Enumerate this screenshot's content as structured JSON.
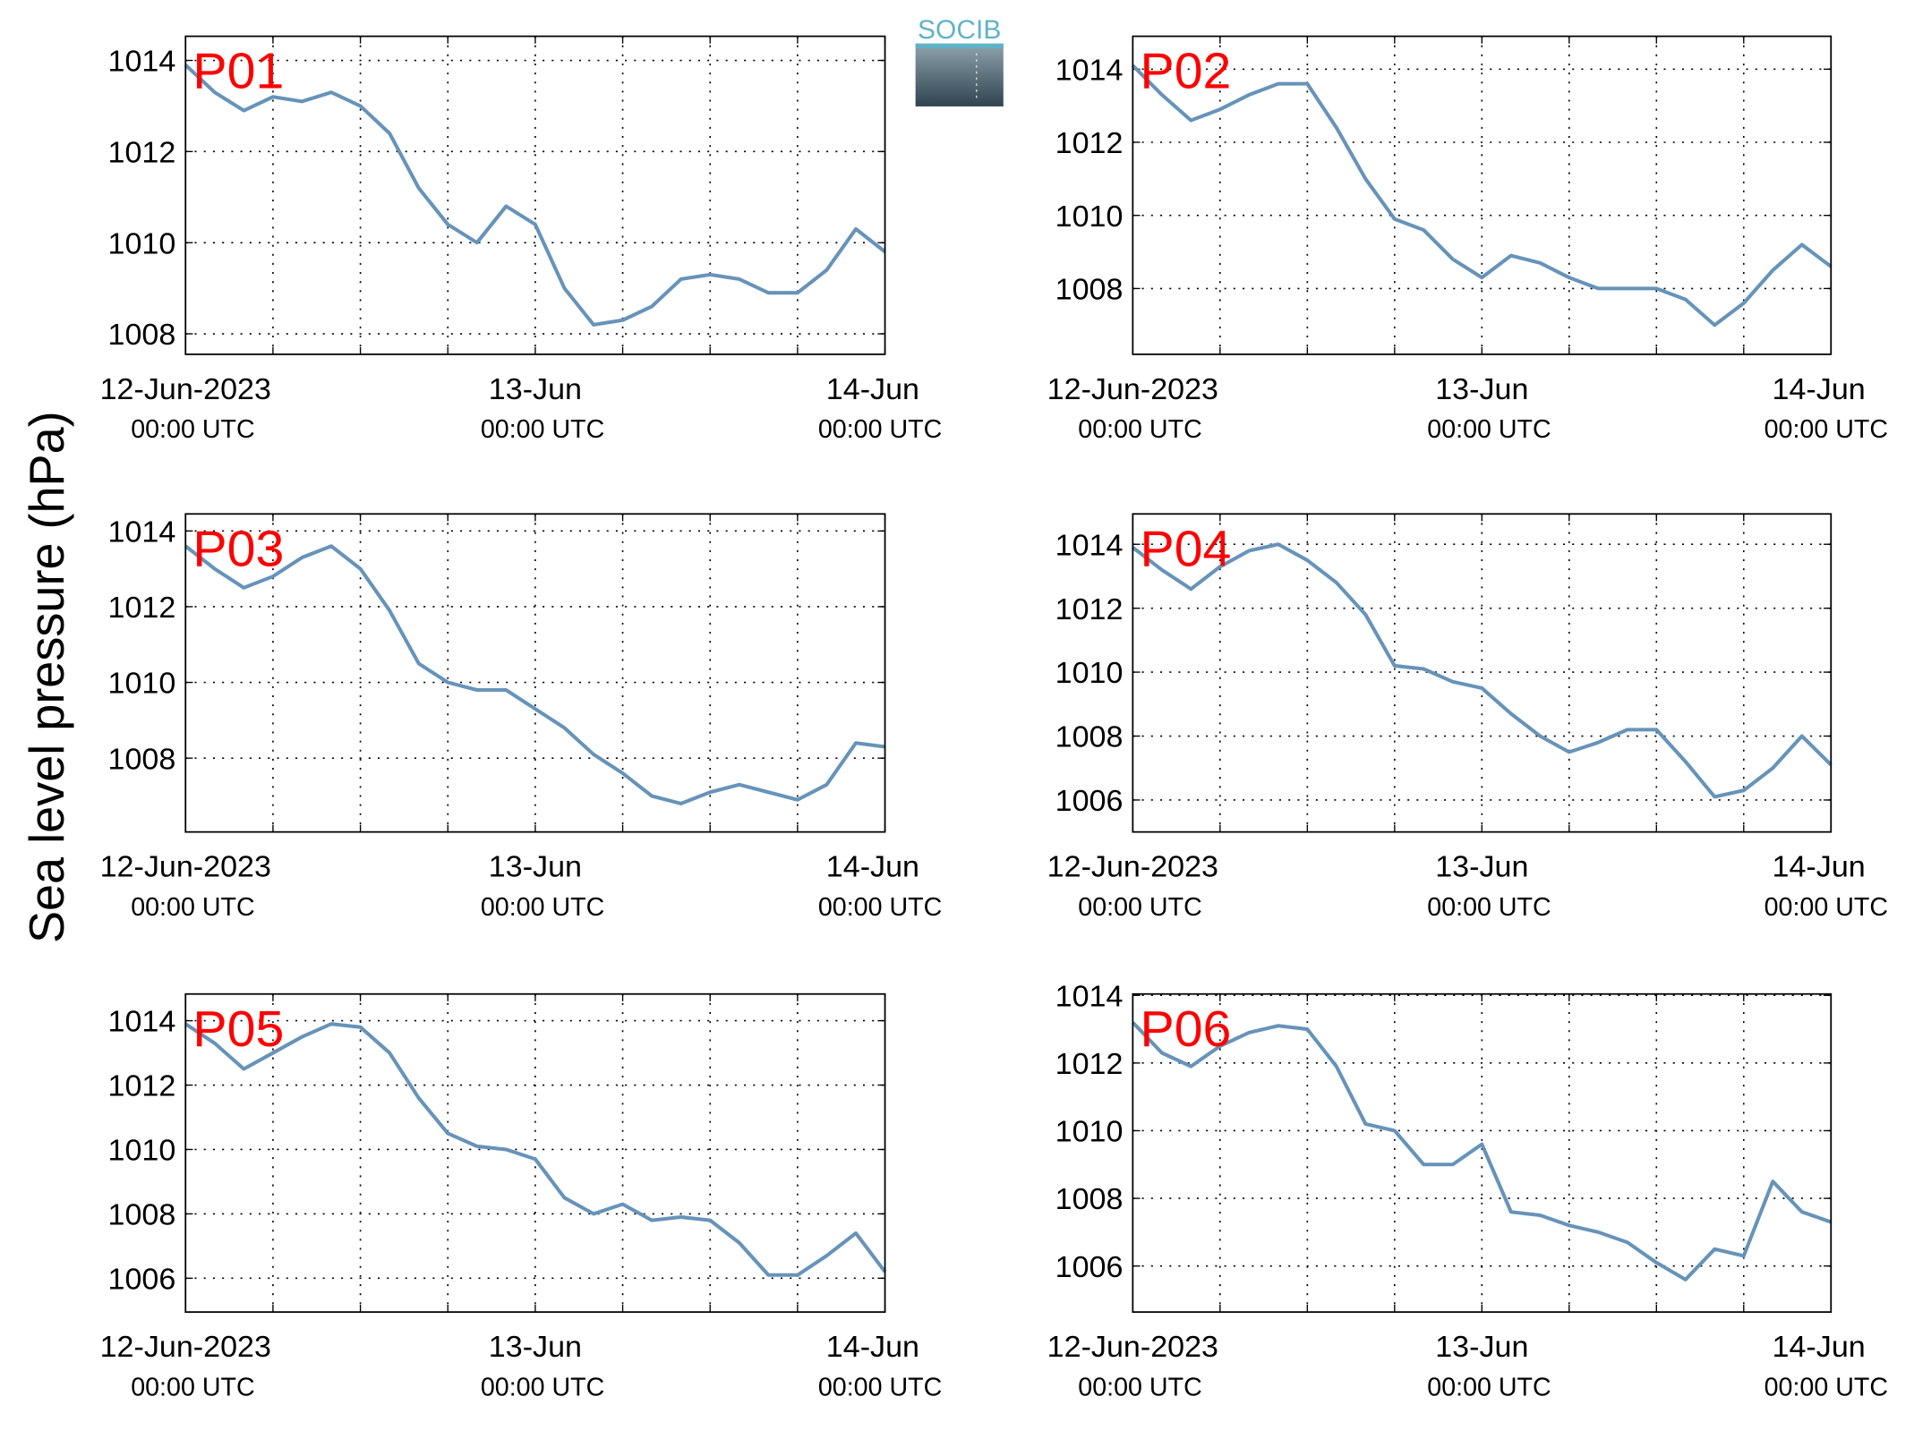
{
  "ylabel": "Sea level pressure (hPa)",
  "logo": "SOCIB",
  "chart_data": [
    {
      "type": "line",
      "title": "P01",
      "x": [
        "2023-06-12T00:00",
        "2023-06-12T02:00",
        "2023-06-12T04:00",
        "2023-06-12T06:00",
        "2023-06-12T08:00",
        "2023-06-12T10:00",
        "2023-06-12T12:00",
        "2023-06-12T14:00",
        "2023-06-12T16:00",
        "2023-06-12T18:00",
        "2023-06-12T20:00",
        "2023-06-12T22:00",
        "2023-06-13T00:00",
        "2023-06-13T02:00",
        "2023-06-13T04:00",
        "2023-06-13T06:00",
        "2023-06-13T08:00",
        "2023-06-13T10:00",
        "2023-06-13T12:00",
        "2023-06-13T14:00",
        "2023-06-13T16:00",
        "2023-06-13T18:00",
        "2023-06-13T20:00",
        "2023-06-13T22:00",
        "2023-06-14T00:00"
      ],
      "series": [
        {
          "color": "#6793b9",
          "values": [
            1013.9,
            1013.3,
            1012.9,
            1013.2,
            1013.1,
            1013.3,
            1013.0,
            1012.4,
            1011.2,
            1010.4,
            1010.0,
            1010.8,
            1010.4,
            1009.0,
            1008.2,
            1008.3,
            1008.6,
            1009.2,
            1009.3,
            1009.2,
            1008.9,
            1008.9,
            1009.4,
            1010.3,
            1009.8
          ]
        }
      ],
      "xlim": [
        "2023-06-12T00:00",
        "2023-06-14T00:00"
      ],
      "xticks": [
        {
          "value": "2023-06-12T00:00",
          "label": "12-Jun-2023",
          "sublabel": "00:00 UTC"
        },
        {
          "value": "2023-06-12T06:00",
          "label": null
        },
        {
          "value": "2023-06-12T12:00",
          "label": null
        },
        {
          "value": "2023-06-12T18:00",
          "label": null
        },
        {
          "value": "2023-06-13T00:00",
          "label": "13-Jun",
          "sublabel": "00:00 UTC"
        },
        {
          "value": "2023-06-13T06:00",
          "label": null
        },
        {
          "value": "2023-06-13T12:00",
          "label": null
        },
        {
          "value": "2023-06-13T18:00",
          "label": null
        },
        {
          "value": "2023-06-14T00:00",
          "label": "14-Jun",
          "sublabel": "00:00 UTC"
        }
      ],
      "ylim": [
        1007.55,
        1014.53
      ],
      "yticks": [
        1008,
        1010,
        1012,
        1014
      ],
      "grid": true
    },
    {
      "type": "line",
      "title": "P02",
      "x": [
        "2023-06-12T00:00",
        "2023-06-12T02:00",
        "2023-06-12T04:00",
        "2023-06-12T06:00",
        "2023-06-12T08:00",
        "2023-06-12T10:00",
        "2023-06-12T12:00",
        "2023-06-12T14:00",
        "2023-06-12T16:00",
        "2023-06-12T18:00",
        "2023-06-12T20:00",
        "2023-06-12T22:00",
        "2023-06-13T00:00",
        "2023-06-13T02:00",
        "2023-06-13T04:00",
        "2023-06-13T06:00",
        "2023-06-13T08:00",
        "2023-06-13T10:00",
        "2023-06-13T12:00",
        "2023-06-13T14:00",
        "2023-06-13T16:00",
        "2023-06-13T18:00",
        "2023-06-13T20:00",
        "2023-06-13T22:00",
        "2023-06-14T00:00"
      ],
      "series": [
        {
          "color": "#6793b9",
          "values": [
            1014.1,
            1013.3,
            1012.6,
            1012.9,
            1013.3,
            1013.6,
            1013.6,
            1012.4,
            1011.0,
            1009.9,
            1009.6,
            1008.8,
            1008.3,
            1008.9,
            1008.7,
            1008.3,
            1008.0,
            1008.0,
            1008.0,
            1007.7,
            1007.0,
            1007.6,
            1008.5,
            1009.2,
            1008.6
          ]
        }
      ],
      "xlim": [
        "2023-06-12T00:00",
        "2023-06-14T00:00"
      ],
      "xticks": [
        {
          "value": "2023-06-12T00:00",
          "label": "12-Jun-2023",
          "sublabel": "00:00 UTC"
        },
        {
          "value": "2023-06-12T06:00",
          "label": null
        },
        {
          "value": "2023-06-12T12:00",
          "label": null
        },
        {
          "value": "2023-06-12T18:00",
          "label": null
        },
        {
          "value": "2023-06-13T00:00",
          "label": "13-Jun",
          "sublabel": "00:00 UTC"
        },
        {
          "value": "2023-06-13T06:00",
          "label": null
        },
        {
          "value": "2023-06-13T12:00",
          "label": null
        },
        {
          "value": "2023-06-13T18:00",
          "label": null
        },
        {
          "value": "2023-06-14T00:00",
          "label": "14-Jun",
          "sublabel": "00:00 UTC"
        }
      ],
      "ylim": [
        1006.2,
        1014.9
      ],
      "yticks": [
        1008,
        1010,
        1012,
        1014
      ],
      "grid": true
    },
    {
      "type": "line",
      "title": "P03",
      "x": [
        "2023-06-12T00:00",
        "2023-06-12T02:00",
        "2023-06-12T04:00",
        "2023-06-12T06:00",
        "2023-06-12T08:00",
        "2023-06-12T10:00",
        "2023-06-12T12:00",
        "2023-06-12T14:00",
        "2023-06-12T16:00",
        "2023-06-12T18:00",
        "2023-06-12T20:00",
        "2023-06-12T22:00",
        "2023-06-13T00:00",
        "2023-06-13T02:00",
        "2023-06-13T04:00",
        "2023-06-13T06:00",
        "2023-06-13T08:00",
        "2023-06-13T10:00",
        "2023-06-13T12:00",
        "2023-06-13T14:00",
        "2023-06-13T16:00",
        "2023-06-13T18:00",
        "2023-06-13T20:00",
        "2023-06-13T22:00",
        "2023-06-14T00:00"
      ],
      "series": [
        {
          "color": "#6793b9",
          "values": [
            1013.6,
            1013.0,
            1012.5,
            1012.8,
            1013.3,
            1013.6,
            1013.0,
            1011.9,
            1010.5,
            1010.0,
            1009.8,
            1009.8,
            1009.3,
            1008.8,
            1008.1,
            1007.6,
            1007.0,
            1006.8,
            1007.1,
            1007.3,
            1007.1,
            1006.9,
            1007.3,
            1008.4,
            1008.3
          ]
        }
      ],
      "xlim": [
        "2023-06-12T00:00",
        "2023-06-14T00:00"
      ],
      "xticks": [
        {
          "value": "2023-06-12T00:00",
          "label": "12-Jun-2023",
          "sublabel": "00:00 UTC"
        },
        {
          "value": "2023-06-12T06:00",
          "label": null
        },
        {
          "value": "2023-06-12T12:00",
          "label": null
        },
        {
          "value": "2023-06-12T18:00",
          "label": null
        },
        {
          "value": "2023-06-13T00:00",
          "label": "13-Jun",
          "sublabel": "00:00 UTC"
        },
        {
          "value": "2023-06-13T06:00",
          "label": null
        },
        {
          "value": "2023-06-13T12:00",
          "label": null
        },
        {
          "value": "2023-06-13T18:00",
          "label": null
        },
        {
          "value": "2023-06-14T00:00",
          "label": "14-Jun",
          "sublabel": "00:00 UTC"
        }
      ],
      "ylim": [
        1006.05,
        1014.45
      ],
      "yticks": [
        1008,
        1010,
        1012,
        1014
      ],
      "grid": true
    },
    {
      "type": "line",
      "title": "P04",
      "x": [
        "2023-06-12T00:00",
        "2023-06-12T02:00",
        "2023-06-12T04:00",
        "2023-06-12T06:00",
        "2023-06-12T08:00",
        "2023-06-12T10:00",
        "2023-06-12T12:00",
        "2023-06-12T14:00",
        "2023-06-12T16:00",
        "2023-06-12T18:00",
        "2023-06-12T20:00",
        "2023-06-12T22:00",
        "2023-06-13T00:00",
        "2023-06-13T02:00",
        "2023-06-13T04:00",
        "2023-06-13T06:00",
        "2023-06-13T08:00",
        "2023-06-13T10:00",
        "2023-06-13T12:00",
        "2023-06-13T14:00",
        "2023-06-13T16:00",
        "2023-06-13T18:00",
        "2023-06-13T20:00",
        "2023-06-13T22:00",
        "2023-06-14T00:00"
      ],
      "series": [
        {
          "color": "#6793b9",
          "values": [
            1013.9,
            1013.2,
            1012.6,
            1013.3,
            1013.8,
            1014.0,
            1013.5,
            1012.8,
            1011.8,
            1010.2,
            1010.1,
            1009.7,
            1009.5,
            1008.7,
            1008.0,
            1007.5,
            1007.8,
            1008.2,
            1008.2,
            1007.2,
            1006.1,
            1006.3,
            1007.0,
            1008.0,
            1007.1
          ]
        }
      ],
      "xlim": [
        "2023-06-12T00:00",
        "2023-06-14T00:00"
      ],
      "xticks": [
        {
          "value": "2023-06-12T00:00",
          "label": "12-Jun-2023",
          "sublabel": "00:00 UTC"
        },
        {
          "value": "2023-06-12T06:00",
          "label": null
        },
        {
          "value": "2023-06-12T12:00",
          "label": null
        },
        {
          "value": "2023-06-12T18:00",
          "label": null
        },
        {
          "value": "2023-06-13T00:00",
          "label": "13-Jun",
          "sublabel": "00:00 UTC"
        },
        {
          "value": "2023-06-13T06:00",
          "label": null
        },
        {
          "value": "2023-06-13T12:00",
          "label": null
        },
        {
          "value": "2023-06-13T18:00",
          "label": null
        },
        {
          "value": "2023-06-14T00:00",
          "label": "14-Jun",
          "sublabel": "00:00 UTC"
        }
      ],
      "ylim": [
        1005.0,
        1014.95
      ],
      "yticks": [
        1006,
        1008,
        1010,
        1012,
        1014
      ],
      "grid": true
    },
    {
      "type": "line",
      "title": "P05",
      "x": [
        "2023-06-12T00:00",
        "2023-06-12T02:00",
        "2023-06-12T04:00",
        "2023-06-12T06:00",
        "2023-06-12T08:00",
        "2023-06-12T10:00",
        "2023-06-12T12:00",
        "2023-06-12T14:00",
        "2023-06-12T16:00",
        "2023-06-12T18:00",
        "2023-06-12T20:00",
        "2023-06-12T22:00",
        "2023-06-13T00:00",
        "2023-06-13T02:00",
        "2023-06-13T04:00",
        "2023-06-13T06:00",
        "2023-06-13T08:00",
        "2023-06-13T10:00",
        "2023-06-13T12:00",
        "2023-06-13T14:00",
        "2023-06-13T16:00",
        "2023-06-13T18:00",
        "2023-06-13T20:00",
        "2023-06-13T22:00",
        "2023-06-14T00:00"
      ],
      "series": [
        {
          "color": "#6793b9",
          "values": [
            1013.9,
            1013.3,
            1012.5,
            1013.0,
            1013.5,
            1013.9,
            1013.8,
            1013.0,
            1011.6,
            1010.5,
            1010.1,
            1010.0,
            1009.7,
            1008.5,
            1008.0,
            1008.3,
            1007.8,
            1007.9,
            1007.8,
            1007.1,
            1006.1,
            1006.1,
            1006.7,
            1007.4,
            1006.2
          ]
        }
      ],
      "xlim": [
        "2023-06-12T00:00",
        "2023-06-14T00:00"
      ],
      "xticks": [
        {
          "value": "2023-06-12T00:00",
          "label": "12-Jun-2023",
          "sublabel": "00:00 UTC"
        },
        {
          "value": "2023-06-12T06:00",
          "label": null
        },
        {
          "value": "2023-06-12T12:00",
          "label": null
        },
        {
          "value": "2023-06-12T18:00",
          "label": null
        },
        {
          "value": "2023-06-13T00:00",
          "label": "13-Jun",
          "sublabel": "00:00 UTC"
        },
        {
          "value": "2023-06-13T06:00",
          "label": null
        },
        {
          "value": "2023-06-13T12:00",
          "label": null
        },
        {
          "value": "2023-06-13T18:00",
          "label": null
        },
        {
          "value": "2023-06-14T00:00",
          "label": "14-Jun",
          "sublabel": "00:00 UTC"
        }
      ],
      "ylim": [
        1004.95,
        1014.83
      ],
      "yticks": [
        1006,
        1008,
        1010,
        1012,
        1014
      ],
      "grid": true
    },
    {
      "type": "line",
      "title": "P06",
      "x": [
        "2023-06-12T00:00",
        "2023-06-12T02:00",
        "2023-06-12T04:00",
        "2023-06-12T06:00",
        "2023-06-12T08:00",
        "2023-06-12T10:00",
        "2023-06-12T12:00",
        "2023-06-12T14:00",
        "2023-06-12T16:00",
        "2023-06-12T18:00",
        "2023-06-12T20:00",
        "2023-06-12T22:00",
        "2023-06-13T00:00",
        "2023-06-13T02:00",
        "2023-06-13T04:00",
        "2023-06-13T06:00",
        "2023-06-13T08:00",
        "2023-06-13T10:00",
        "2023-06-13T12:00",
        "2023-06-13T14:00",
        "2023-06-13T16:00",
        "2023-06-13T18:00",
        "2023-06-13T20:00",
        "2023-06-13T22:00",
        "2023-06-14T00:00"
      ],
      "series": [
        {
          "color": "#6793b9",
          "values": [
            1013.2,
            1012.3,
            1011.9,
            1012.5,
            1012.9,
            1013.1,
            1013.0,
            1011.9,
            1010.2,
            1010.0,
            1009.0,
            1009.0,
            1009.6,
            1007.6,
            1007.5,
            1007.2,
            1007.0,
            1006.7,
            1006.1,
            1005.6,
            1006.5,
            1006.3,
            1008.5,
            1007.6,
            1007.3
          ]
        }
      ],
      "xlim": [
        "2023-06-12T00:00",
        "2023-06-14T00:00"
      ],
      "xticks": [
        {
          "value": "2023-06-12T00:00",
          "label": "12-Jun-2023",
          "sublabel": "00:00 UTC"
        },
        {
          "value": "2023-06-12T06:00",
          "label": null
        },
        {
          "value": "2023-06-12T12:00",
          "label": null
        },
        {
          "value": "2023-06-12T18:00",
          "label": null
        },
        {
          "value": "2023-06-13T00:00",
          "label": "13-Jun",
          "sublabel": "00:00 UTC"
        },
        {
          "value": "2023-06-13T06:00",
          "label": null
        },
        {
          "value": "2023-06-13T12:00",
          "label": null
        },
        {
          "value": "2023-06-13T18:00",
          "label": null
        },
        {
          "value": "2023-06-14T00:00",
          "label": "14-Jun",
          "sublabel": "00:00 UTC"
        }
      ],
      "ylim": [
        1004.64,
        1014.04
      ],
      "yticks": [
        1006,
        1008,
        1010,
        1012,
        1014
      ],
      "grid": true
    }
  ]
}
